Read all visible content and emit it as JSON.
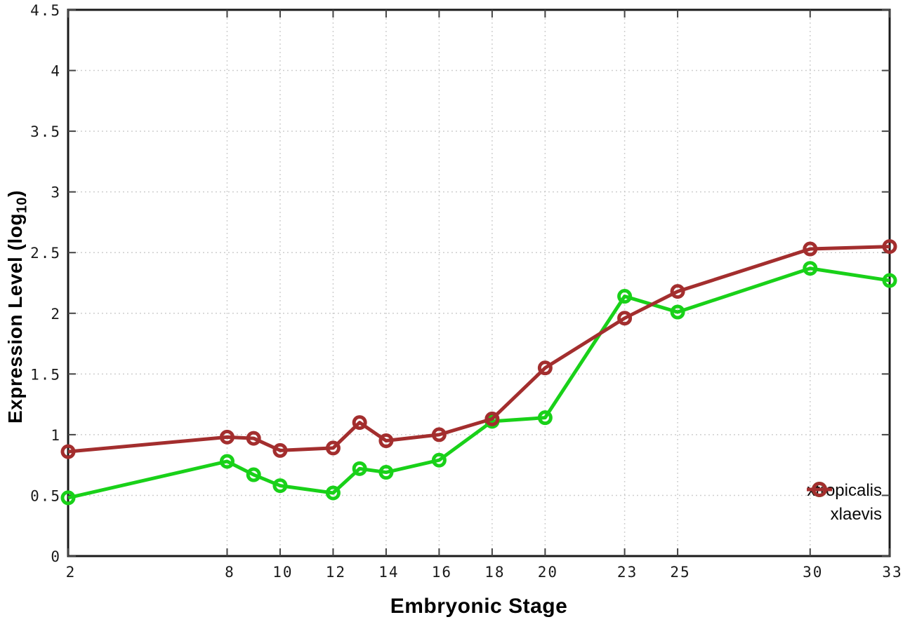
{
  "figure": {
    "xlabel": "Embryonic Stage",
    "ylabel_prefix": "Expression Level (log",
    "ylabel_sub": "10",
    "ylabel_suffix": ")",
    "background": "#ffffff",
    "axis_color": "#1a1a1a",
    "grid_color": "#c9c9c9",
    "tick_label_color": "#1a1a1a"
  },
  "chart_data": {
    "type": "line",
    "title": "",
    "xlabel": "Embryonic Stage",
    "ylabel": "Expression Level (log10)",
    "x": [
      2,
      8,
      9,
      10,
      12,
      13,
      14,
      16,
      18,
      20,
      23,
      25,
      30,
      33
    ],
    "series": [
      {
        "name": "xtropicalis",
        "color": "#19d119",
        "marker": "open-circle",
        "values": [
          0.48,
          0.78,
          0.67,
          0.58,
          0.52,
          0.72,
          0.69,
          0.79,
          1.11,
          1.14,
          2.14,
          2.01,
          2.37,
          2.27
        ]
      },
      {
        "name": "xlaevis",
        "color": "#a32e2e",
        "marker": "open-circle",
        "values": [
          0.86,
          0.98,
          0.97,
          0.87,
          0.89,
          1.1,
          0.95,
          1.0,
          1.13,
          1.55,
          1.96,
          2.18,
          2.53,
          2.55
        ]
      }
    ],
    "xlim": [
      2,
      33
    ],
    "ylim": [
      0,
      4.5
    ],
    "x_ticks": [
      2,
      8,
      10,
      12,
      14,
      16,
      18,
      20,
      23,
      25,
      30,
      33
    ],
    "y_ticks": [
      0,
      0.5,
      1,
      1.5,
      2,
      2.5,
      3,
      3.5,
      4,
      4.5
    ],
    "grid": true,
    "legend_position": "bottom-right"
  }
}
